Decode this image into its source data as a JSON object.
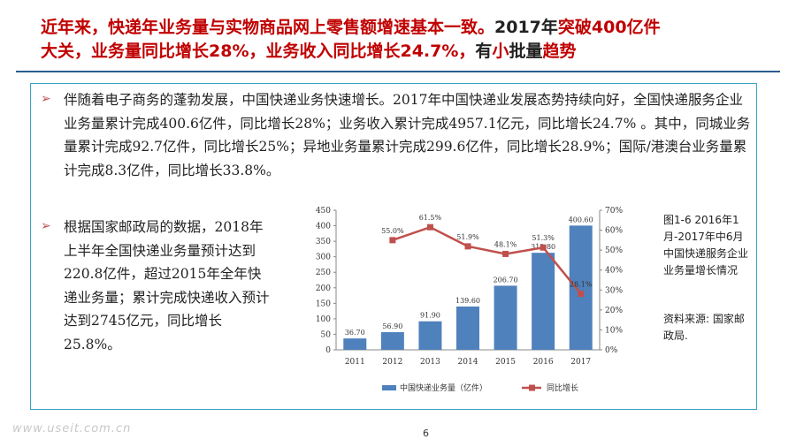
{
  "slide": {
    "title_red_1": "近年来，快递年业务量与实物商品网上零售额增速基本一致。",
    "title_black_1": "2017年",
    "title_red_2": "突破400亿件",
    "title_red_3": "大关，业务量同比增长28%，业务收入同比增长24.7%，",
    "title_black_2": "有",
    "title_red_4": "小",
    "title_black_3": "批量",
    "title_red_5": "趋势",
    "bullet_symbol": "➢",
    "paragraph_1": "伴随着电子商务的蓬勃发展，中国快递业务快速增长。2017年中国快递业发展态势持续向好，全国快递服务企业业务量累计完成400.6亿件，同比增长28%；业务收入累计完成4957.1亿元，同比增长24.7% 。其中，同城业务量累计完成92.7亿件，同比增长25%；异地业务量累计完成299.6亿件，同比增长28.9%；国际/港澳台业务量累计完成8.3亿件，同比增长33.8%。",
    "paragraph_2": "根据国家邮政局的数据，2018年上半年全国快递业务量预计达到220.8亿件，超过2015年全年快递业务量；累计完成快递收入预计达到2745亿元，同比增长25.8%。",
    "caption": "图1-6 2016年1月-2017年中6月中国快递服务企业业务量增长情况",
    "source": "资料来源: 国家邮政局.",
    "watermark": "www.useit.com.cn",
    "page_number": "6"
  },
  "chart_data": {
    "type": "bar",
    "categories": [
      "2011",
      "2012",
      "2013",
      "2014",
      "2015",
      "2016",
      "2017"
    ],
    "series": [
      {
        "name": "中国快递业务量（亿件）",
        "kind": "bar",
        "axis": "left",
        "color": "#4f81bd",
        "values": [
          36.7,
          56.9,
          91.9,
          139.6,
          206.7,
          312.8,
          400.6
        ],
        "labels": [
          "36.70",
          "56.90",
          "91.90",
          "139.60",
          "206.70",
          "312.80",
          "400.60"
        ]
      },
      {
        "name": "同比增长",
        "kind": "line",
        "axis": "right",
        "color": "#c0504d",
        "values": [
          null,
          55.0,
          61.5,
          51.9,
          48.1,
          51.3,
          28.1
        ],
        "labels": [
          "",
          "55.0%",
          "61.5%",
          "51.9%",
          "48.1%",
          "51.3%",
          "28.1%"
        ]
      }
    ],
    "y_left": {
      "min": 0,
      "max": 450,
      "ticks": [
        "0",
        "50",
        "100",
        "150",
        "200",
        "250",
        "300",
        "350",
        "400",
        "450"
      ]
    },
    "y_right": {
      "min": 0,
      "max": 70,
      "ticks": [
        "0%",
        "10%",
        "20%",
        "30%",
        "40%",
        "50%",
        "60%",
        "70%"
      ]
    },
    "legend_position": "bottom",
    "grid": false
  }
}
